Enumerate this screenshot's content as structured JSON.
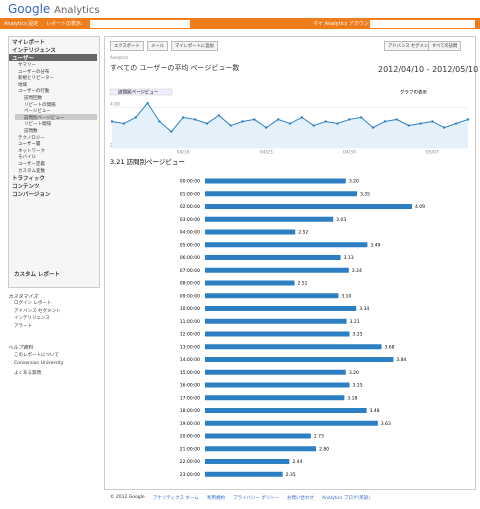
{
  "header": {
    "logo_google": "Google",
    "logo_analytics": "Analytics",
    "nav": [
      "Analytics 設定",
      "レポートの表示:"
    ],
    "account": "マイ Analytics アカウント:"
  },
  "sidebar": {
    "items": [
      {
        "label": "マイレポート",
        "level": 0
      },
      {
        "label": "インテリジェンス",
        "level": 0
      },
      {
        "label": "ユーザー",
        "level": 0,
        "selected": true
      },
      {
        "label": "サマリー",
        "level": 1
      },
      {
        "label": "ユーザーの分布",
        "level": 1
      },
      {
        "label": "新規とリピーター",
        "level": 1
      },
      {
        "label": "地域",
        "level": 1
      },
      {
        "label": "ユーザーの行動",
        "level": 1
      },
      {
        "label": "訪問回数",
        "level": 2
      },
      {
        "label": "リピートの間隔",
        "level": 2
      },
      {
        "label": "ページビュー",
        "level": 2
      },
      {
        "label": "訪問別ページビュー",
        "level": 2,
        "selected": true
      },
      {
        "label": "リピート間隔",
        "level": 2
      },
      {
        "label": "訪問数",
        "level": 2
      },
      {
        "label": "テクノロジー",
        "level": 1
      },
      {
        "label": "ユーザー層",
        "level": 1
      },
      {
        "label": "ネットワーク",
        "level": 1
      },
      {
        "label": "モバイル",
        "level": 1
      },
      {
        "label": "ユーザー定義",
        "level": 1
      },
      {
        "label": "カスタム変数",
        "level": 1
      },
      {
        "label": "トラフィック",
        "level": 0
      },
      {
        "label": "コンテンツ",
        "level": 0
      },
      {
        "label": "コンバージョン",
        "level": 0
      }
    ],
    "custom_report": "カスタム レポート",
    "customize_title": "カスタマイズ",
    "customize": [
      "ログイン レポート",
      "アドバンス セグメント",
      "インテリジェンス",
      "アラート"
    ],
    "help_title": "ヘルプ資料",
    "help": [
      "このレポートについて",
      "Conversion University",
      "よくある質問"
    ]
  },
  "toolbar": [
    "エクスポート",
    "メール",
    "マイレポートに追加",
    "アドバンス セグメント",
    "すべての訪問"
  ],
  "breadcrumb": "Analytics",
  "report_title": "すべての ユーザーの平均 ページビュー数",
  "date_range": "2012/04/10 - 2012/05/10",
  "line_chart": {
    "type": "line",
    "legend": "訪問別ページビュー",
    "graph_mode": "グラフの表示",
    "categories": [
      null,
      null,
      null,
      null,
      null,
      null,
      "04/16",
      null,
      null,
      null,
      null,
      null,
      null,
      "04/23",
      null,
      null,
      null,
      null,
      null,
      null,
      "04/30",
      null,
      null,
      null,
      null,
      null,
      null,
      "05/07",
      null,
      null,
      null
    ],
    "values": [
      3.3,
      3.2,
      3.5,
      4.2,
      3.3,
      2.8,
      3.5,
      3.4,
      3.2,
      3.6,
      3.1,
      3.3,
      3.4,
      3.0,
      3.4,
      3.2,
      3.5,
      3.1,
      3.3,
      3.2,
      3.4,
      3.5,
      3.0,
      3.3,
      3.4,
      3.1,
      3.2,
      3.3,
      3.0,
      3.2,
      3.4
    ],
    "ylim": [
      2,
      4.5
    ],
    "yticks": [
      {
        "value": 4,
        "label": "4.00"
      },
      {
        "value": 2,
        "label": "2.00"
      }
    ],
    "color": "#2d7fc4"
  },
  "bar_chart": {
    "type": "bar",
    "title": "3.21 訪問別ページビュー",
    "categories": [
      "00:00:00",
      "01:00:00",
      "02:00:00",
      "03:00:00",
      "04:00:00",
      "05:00:00",
      "06:00:00",
      "07:00:00",
      "08:00:00",
      "09:00:00",
      "10:00:00",
      "11:00:00",
      "12:00:00",
      "13:00:00",
      "14:00:00",
      "15:00:00",
      "16:00:00",
      "17:00:00",
      "18:00:00",
      "19:00:00",
      "20:00:00",
      "21:00:00",
      "22:00:00",
      "23:00:00"
    ],
    "values": [
      3.2,
      3.35,
      4.09,
      3.03,
      2.52,
      3.49,
      3.13,
      3.24,
      2.51,
      3.1,
      3.34,
      3.21,
      3.25,
      3.68,
      3.84,
      3.2,
      3.25,
      3.18,
      3.48,
      3.63,
      2.73,
      2.8,
      2.44,
      2.35
    ],
    "value_labels": [
      "3.20",
      "3.35",
      "4.09",
      "3.03",
      "2.52",
      "3.49",
      "3.13",
      "3.24",
      "2.51",
      "3.10",
      "3.34",
      "3.21",
      "3.25",
      "3.68",
      "3.84",
      "3.20",
      "3.25",
      "3.18",
      "3.48",
      "3.63",
      "2.73",
      "2.80",
      "2.44",
      "2.35"
    ],
    "color": "#2d7fc4"
  },
  "footer": [
    "© 2012 Google",
    "アナリティクス ホーム",
    "利用規約",
    "プライバシー ポリシー",
    "お問い合わせ",
    "Analytics ブログ(英語)"
  ]
}
